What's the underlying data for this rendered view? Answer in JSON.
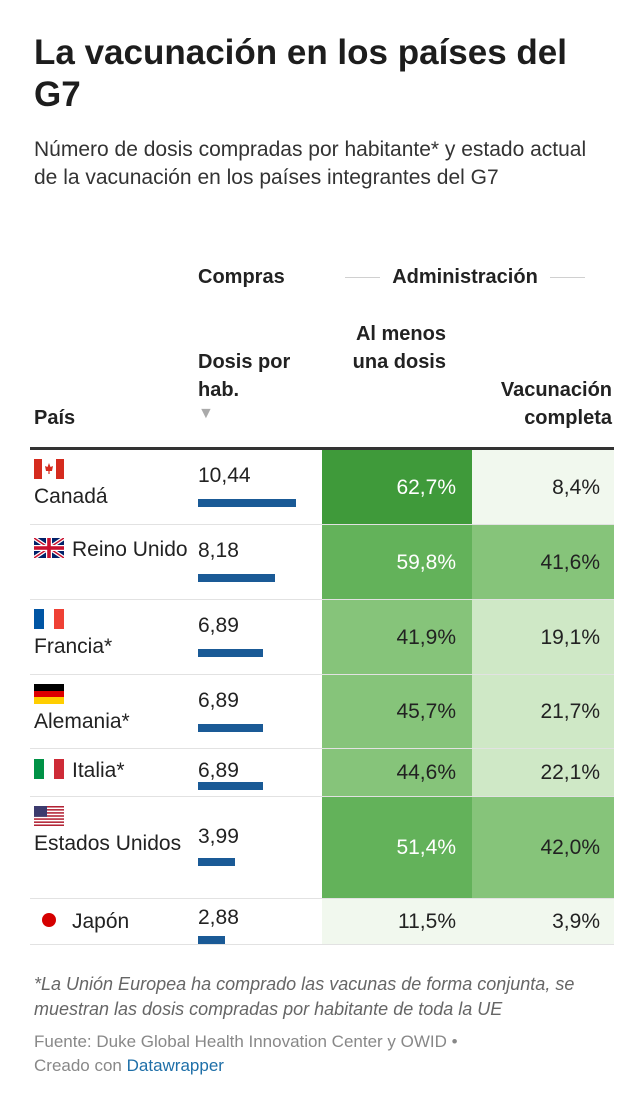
{
  "title": "La vacunación en los países del G7",
  "subtitle": "Número de dosis compradas por habitante* y estado actual de la vacunación en los países integrantes del G7",
  "header": {
    "group_compras": "Compras",
    "group_admin": "Administración",
    "col_pais": "País",
    "col_dosis": "Dosis por hab.",
    "sort_icon": "▼",
    "col_una": "Al menos una dosis",
    "col_completa": "Vacunación completa"
  },
  "chart_data": {
    "type": "table",
    "columns": [
      "País",
      "Dosis por hab.",
      "Al menos una dosis",
      "Vacunación completa"
    ],
    "max_dosis": 10.44,
    "rows": [
      {
        "country": "Canadá",
        "flag": "canada-flag-icon",
        "dosis": 10.44,
        "dosis_label": "10,44",
        "una_dosis": 62.7,
        "una_label": "62,7%",
        "completa": 8.4,
        "completa_label": "8,4%"
      },
      {
        "country": "Reino Unido",
        "flag": "uk-flag-icon",
        "dosis": 8.18,
        "dosis_label": "8,18",
        "una_dosis": 59.8,
        "una_label": "59,8%",
        "completa": 41.6,
        "completa_label": "41,6%"
      },
      {
        "country": "Francia*",
        "flag": "france-flag-icon",
        "dosis": 6.89,
        "dosis_label": "6,89",
        "una_dosis": 41.9,
        "una_label": "41,9%",
        "completa": 19.1,
        "completa_label": "19,1%"
      },
      {
        "country": "Alemania*",
        "flag": "germany-flag-icon",
        "dosis": 6.89,
        "dosis_label": "6,89",
        "una_dosis": 45.7,
        "una_label": "45,7%",
        "completa": 21.7,
        "completa_label": "21,7%"
      },
      {
        "country": "Italia*",
        "flag": "italy-flag-icon",
        "dosis": 6.89,
        "dosis_label": "6,89",
        "una_dosis": 44.6,
        "una_label": "44,6%",
        "completa": 22.1,
        "completa_label": "22,1%"
      },
      {
        "country": "Estados Unidos",
        "flag": "usa-flag-icon",
        "dosis": 3.99,
        "dosis_label": "3,99",
        "una_dosis": 51.4,
        "una_label": "51,4%",
        "completa": 42.0,
        "completa_label": "42,0%"
      },
      {
        "country": "Japón",
        "flag": "japan-flag-icon",
        "dosis": 2.88,
        "dosis_label": "2,88",
        "una_dosis": 11.5,
        "una_label": "11,5%",
        "completa": 3.9,
        "completa_label": "3,9%"
      }
    ]
  },
  "colors": {
    "bar": "#1a5a96",
    "heat_scale": [
      "#f1f8ee",
      "#cfe8c6",
      "#86c47a",
      "#63b25a",
      "#3f9a3a"
    ]
  },
  "footer": {
    "note": "*La Unión Europea ha comprado las vacunas de forma conjunta, se muestran las dosis compradas por habitante de toda la UE",
    "source": "Fuente: Duke Global Health Innovation Center y OWID •",
    "created_prefix": "Creado con",
    "created_link": "Datawrapper"
  }
}
